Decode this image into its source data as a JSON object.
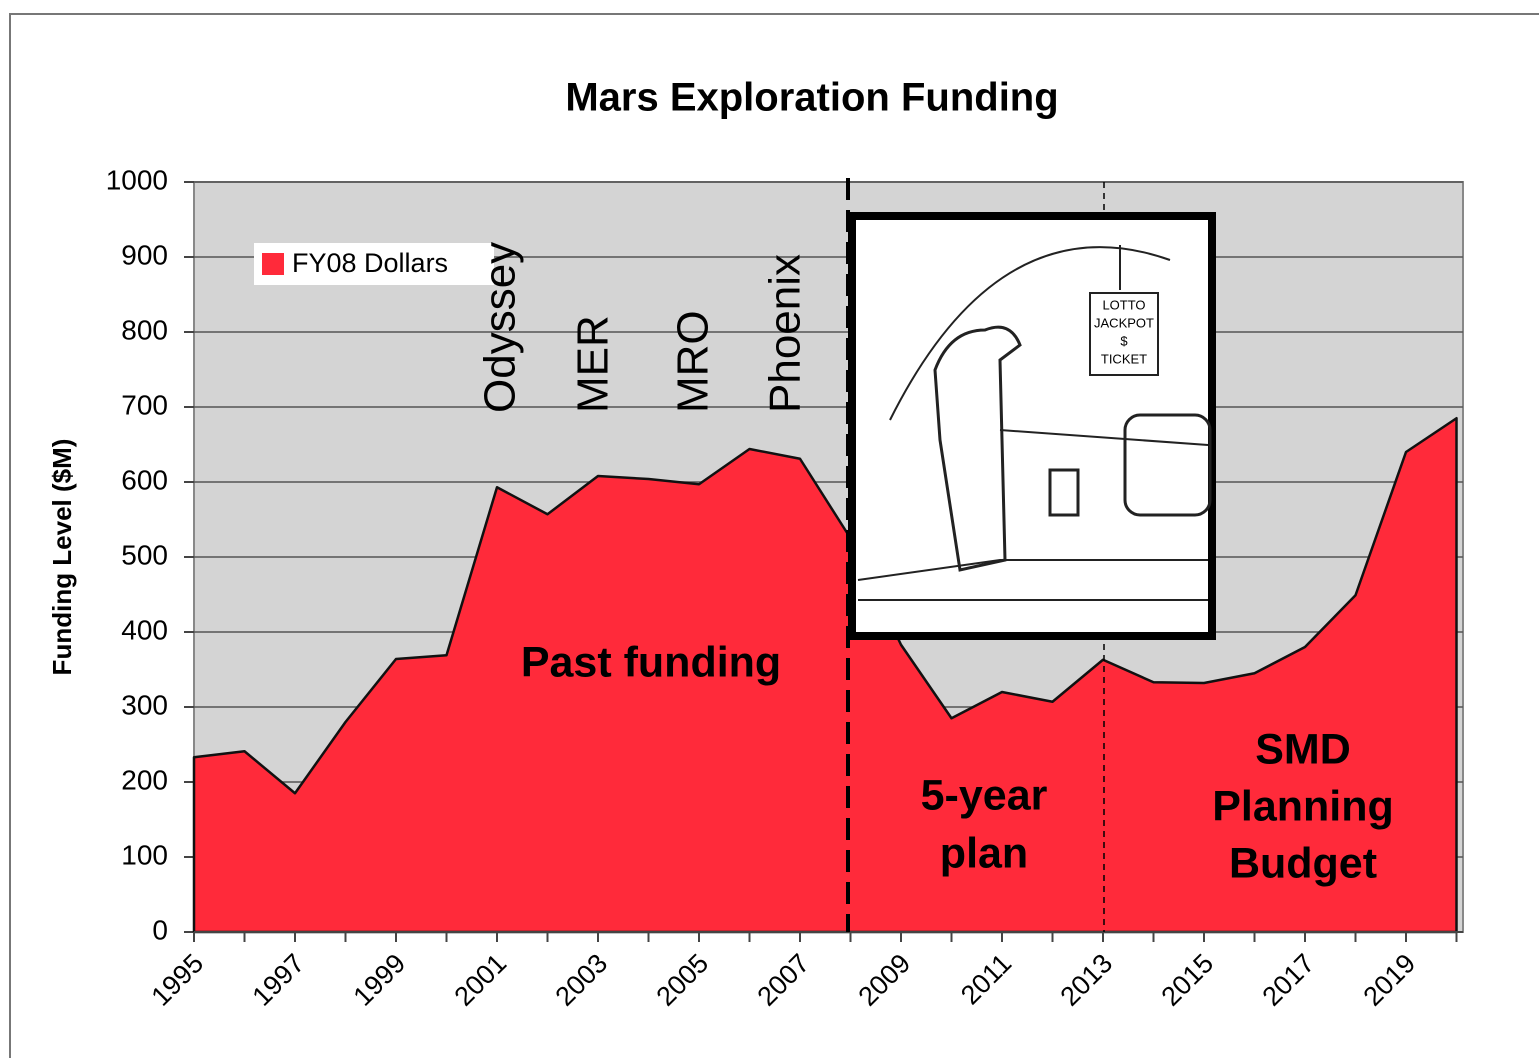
{
  "chart_data": {
    "type": "area",
    "title": "Mars Exploration Funding",
    "ylabel": "Funding Level ($M)",
    "categories": [
      "1995",
      null,
      "1997",
      null,
      "1999",
      null,
      "2001",
      null,
      "2003",
      null,
      "2005",
      null,
      "2007",
      null,
      "2009",
      null,
      "2011",
      null,
      "2013",
      null,
      "2015",
      null,
      "2017",
      null,
      "2019",
      null
    ],
    "series": [
      {
        "name": "FY08 Dollars",
        "color": "#ff2a3a",
        "values": [
          233,
          241,
          185,
          280,
          364,
          369,
          593,
          557,
          608,
          604,
          597,
          644,
          631,
          525,
          383,
          285,
          320,
          307,
          363,
          333,
          332,
          345,
          380,
          449,
          640,
          685
        ]
      }
    ],
    "ylim": [
      0,
      1000
    ],
    "yticks": [
      0,
      100,
      200,
      300,
      400,
      500,
      600,
      700,
      800,
      900,
      1000
    ],
    "grid": true,
    "legend": "upper left",
    "mission_labels": [
      "Odyssey",
      "MER",
      "MRO",
      "Phoenix"
    ],
    "period_labels": [
      [
        "Past funding"
      ],
      [
        "5-year",
        "plan"
      ],
      [
        "SMD",
        "Planning",
        "Budget"
      ]
    ],
    "cartoon_sign": [
      "LOTTO",
      "JACKPOT",
      "$",
      "TICKET"
    ]
  }
}
